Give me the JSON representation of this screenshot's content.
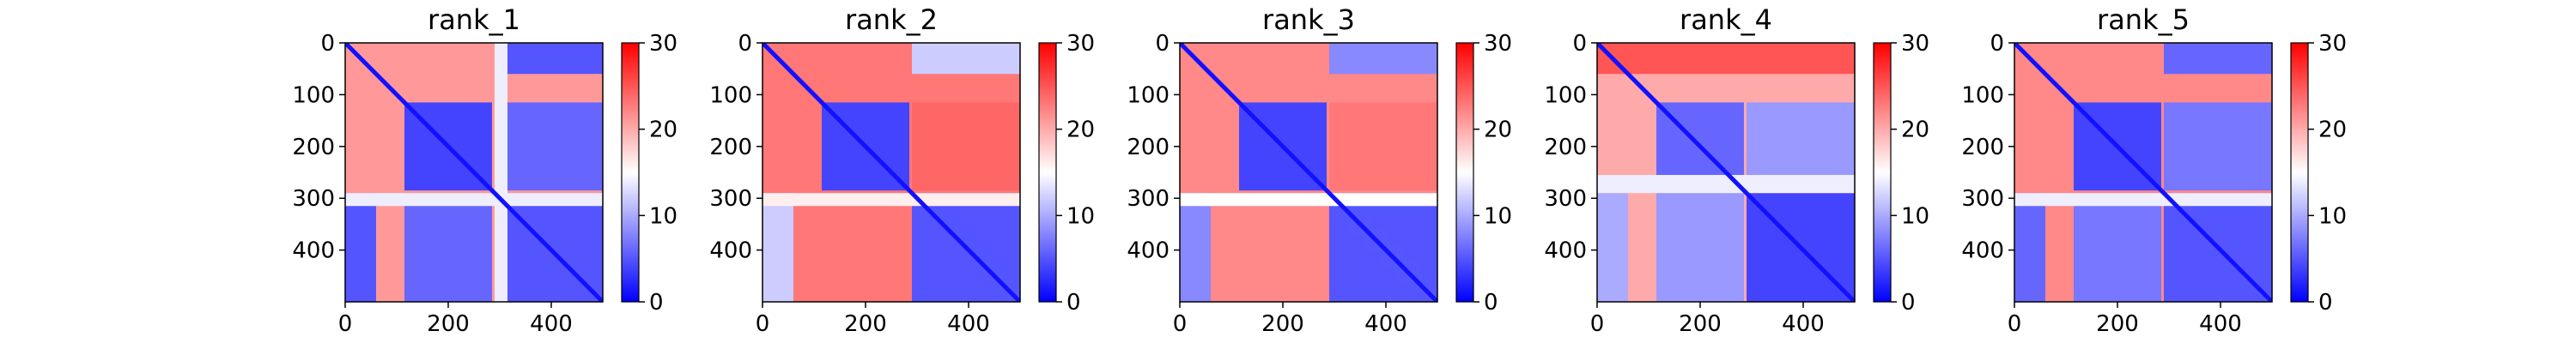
{
  "figure": {
    "colormap": {
      "low": "#0000ff",
      "mid": "#ffffff",
      "high": "#ff0000"
    }
  },
  "chart_data": [
    {
      "type": "heatmap",
      "title": "rank_1",
      "xlim": [
        0,
        500
      ],
      "ylim": [
        500,
        0
      ],
      "x_ticks": [
        "0",
        "200",
        "400"
      ],
      "y_ticks": [
        "0",
        "100",
        "200",
        "300",
        "400"
      ],
      "colorbar": {
        "range": [
          0,
          30
        ],
        "ticks": [
          "0",
          "10",
          "20",
          "30"
        ]
      },
      "blocks": [
        {
          "x": [
            0,
            500
          ],
          "y": [
            0,
            500
          ],
          "value": 21
        },
        {
          "x": [
            115,
            285
          ],
          "y": [
            115,
            285
          ],
          "value": 4
        },
        {
          "x": [
            290,
            500
          ],
          "y": [
            290,
            500
          ],
          "value": 5
        },
        {
          "x": [
            290,
            500
          ],
          "y": [
            0,
            60
          ],
          "value": 5
        },
        {
          "x": [
            0,
            60
          ],
          "y": [
            290,
            500
          ],
          "value": 5
        },
        {
          "x": [
            115,
            285
          ],
          "y": [
            290,
            500
          ],
          "value": 6
        },
        {
          "x": [
            290,
            500
          ],
          "y": [
            115,
            285
          ],
          "value": 6
        },
        {
          "x": [
            0,
            500
          ],
          "y": [
            290,
            315
          ],
          "value": 14
        },
        {
          "x": [
            290,
            315
          ],
          "y": [
            0,
            500
          ],
          "value": 14
        }
      ]
    },
    {
      "type": "heatmap",
      "title": "rank_2",
      "xlim": [
        0,
        500
      ],
      "ylim": [
        500,
        0
      ],
      "x_ticks": [
        "0",
        "200",
        "400"
      ],
      "y_ticks": [
        "0",
        "100",
        "200",
        "300",
        "400"
      ],
      "colorbar": {
        "range": [
          0,
          30
        ],
        "ticks": [
          "0",
          "10",
          "20",
          "30"
        ]
      },
      "blocks": [
        {
          "x": [
            0,
            500
          ],
          "y": [
            0,
            500
          ],
          "value": 23
        },
        {
          "x": [
            115,
            285
          ],
          "y": [
            115,
            285
          ],
          "value": 4
        },
        {
          "x": [
            290,
            500
          ],
          "y": [
            290,
            500
          ],
          "value": 5
        },
        {
          "x": [
            290,
            500
          ],
          "y": [
            0,
            60
          ],
          "value": 12
        },
        {
          "x": [
            0,
            60
          ],
          "y": [
            290,
            500
          ],
          "value": 12
        },
        {
          "x": [
            290,
            500
          ],
          "y": [
            115,
            285
          ],
          "value": 24
        },
        {
          "x": [
            0,
            500
          ],
          "y": [
            290,
            315
          ],
          "value": 16
        }
      ]
    },
    {
      "type": "heatmap",
      "title": "rank_3",
      "xlim": [
        0,
        500
      ],
      "ylim": [
        500,
        0
      ],
      "x_ticks": [
        "0",
        "200",
        "400"
      ],
      "y_ticks": [
        "0",
        "100",
        "200",
        "300",
        "400"
      ],
      "colorbar": {
        "range": [
          0,
          30
        ],
        "ticks": [
          "0",
          "10",
          "20",
          "30"
        ]
      },
      "blocks": [
        {
          "x": [
            0,
            500
          ],
          "y": [
            0,
            500
          ],
          "value": 22
        },
        {
          "x": [
            115,
            285
          ],
          "y": [
            115,
            285
          ],
          "value": 4
        },
        {
          "x": [
            290,
            500
          ],
          "y": [
            290,
            500
          ],
          "value": 5
        },
        {
          "x": [
            290,
            500
          ],
          "y": [
            0,
            60
          ],
          "value": 8
        },
        {
          "x": [
            0,
            60
          ],
          "y": [
            290,
            500
          ],
          "value": 8
        },
        {
          "x": [
            290,
            500
          ],
          "y": [
            115,
            285
          ],
          "value": 23
        },
        {
          "x": [
            0,
            500
          ],
          "y": [
            290,
            315
          ],
          "value": 15
        }
      ]
    },
    {
      "type": "heatmap",
      "title": "rank_4",
      "xlim": [
        0,
        500
      ],
      "ylim": [
        500,
        0
      ],
      "x_ticks": [
        "0",
        "200",
        "400"
      ],
      "y_ticks": [
        "0",
        "100",
        "200",
        "300",
        "400"
      ],
      "colorbar": {
        "range": [
          0,
          30
        ],
        "ticks": [
          "0",
          "10",
          "20",
          "30"
        ]
      },
      "blocks": [
        {
          "x": [
            0,
            500
          ],
          "y": [
            0,
            500
          ],
          "value": 20
        },
        {
          "x": [
            0,
            500
          ],
          "y": [
            0,
            60
          ],
          "value": 25
        },
        {
          "x": [
            115,
            285
          ],
          "y": [
            115,
            285
          ],
          "value": 6
        },
        {
          "x": [
            290,
            500
          ],
          "y": [
            290,
            500
          ],
          "value": 4
        },
        {
          "x": [
            115,
            285
          ],
          "y": [
            290,
            500
          ],
          "value": 9
        },
        {
          "x": [
            290,
            500
          ],
          "y": [
            115,
            285
          ],
          "value": 9
        },
        {
          "x": [
            0,
            60
          ],
          "y": [
            290,
            500
          ],
          "value": 10
        },
        {
          "x": [
            0,
            500
          ],
          "y": [
            255,
            290
          ],
          "value": 14
        }
      ]
    },
    {
      "type": "heatmap",
      "title": "rank_5",
      "xlim": [
        0,
        500
      ],
      "ylim": [
        500,
        0
      ],
      "x_ticks": [
        "0",
        "200",
        "400"
      ],
      "y_ticks": [
        "0",
        "100",
        "200",
        "300",
        "400"
      ],
      "colorbar": {
        "range": [
          0,
          30
        ],
        "ticks": [
          "0",
          "10",
          "20",
          "30"
        ]
      },
      "blocks": [
        {
          "x": [
            0,
            500
          ],
          "y": [
            0,
            500
          ],
          "value": 22
        },
        {
          "x": [
            115,
            285
          ],
          "y": [
            115,
            285
          ],
          "value": 4
        },
        {
          "x": [
            290,
            500
          ],
          "y": [
            290,
            500
          ],
          "value": 5
        },
        {
          "x": [
            290,
            500
          ],
          "y": [
            0,
            60
          ],
          "value": 6
        },
        {
          "x": [
            0,
            60
          ],
          "y": [
            290,
            500
          ],
          "value": 6
        },
        {
          "x": [
            115,
            285
          ],
          "y": [
            290,
            500
          ],
          "value": 7
        },
        {
          "x": [
            290,
            500
          ],
          "y": [
            115,
            285
          ],
          "value": 7
        },
        {
          "x": [
            0,
            500
          ],
          "y": [
            290,
            315
          ],
          "value": 14
        }
      ]
    }
  ]
}
